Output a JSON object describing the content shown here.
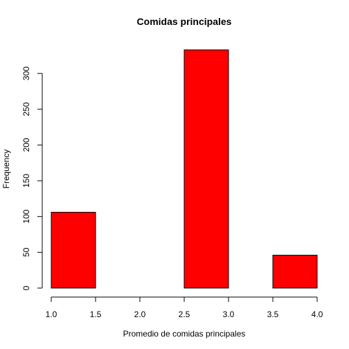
{
  "chart_data": {
    "type": "bar",
    "title": "Comidas principales",
    "xlabel": "Promedio de comidas principales",
    "ylabel": "Frequency",
    "bin_edges": [
      1.0,
      1.5,
      2.0,
      2.5,
      3.0,
      3.5,
      4.0
    ],
    "values": [
      106,
      0,
      0,
      333,
      0,
      46
    ],
    "xlim": [
      1.0,
      4.0
    ],
    "ylim": [
      0,
      333
    ],
    "x_ticks": [
      1.0,
      1.5,
      2.0,
      2.5,
      3.0,
      3.5,
      4.0
    ],
    "x_tick_labels": [
      "1.0",
      "1.5",
      "2.0",
      "2.5",
      "3.0",
      "3.5",
      "4.0"
    ],
    "y_ticks": [
      0,
      50,
      100,
      150,
      200,
      250,
      300
    ],
    "y_tick_labels": [
      "0",
      "50",
      "100",
      "150",
      "200",
      "250",
      "300"
    ],
    "bar_color": "#ff0000",
    "grid": false,
    "legend": "none"
  }
}
